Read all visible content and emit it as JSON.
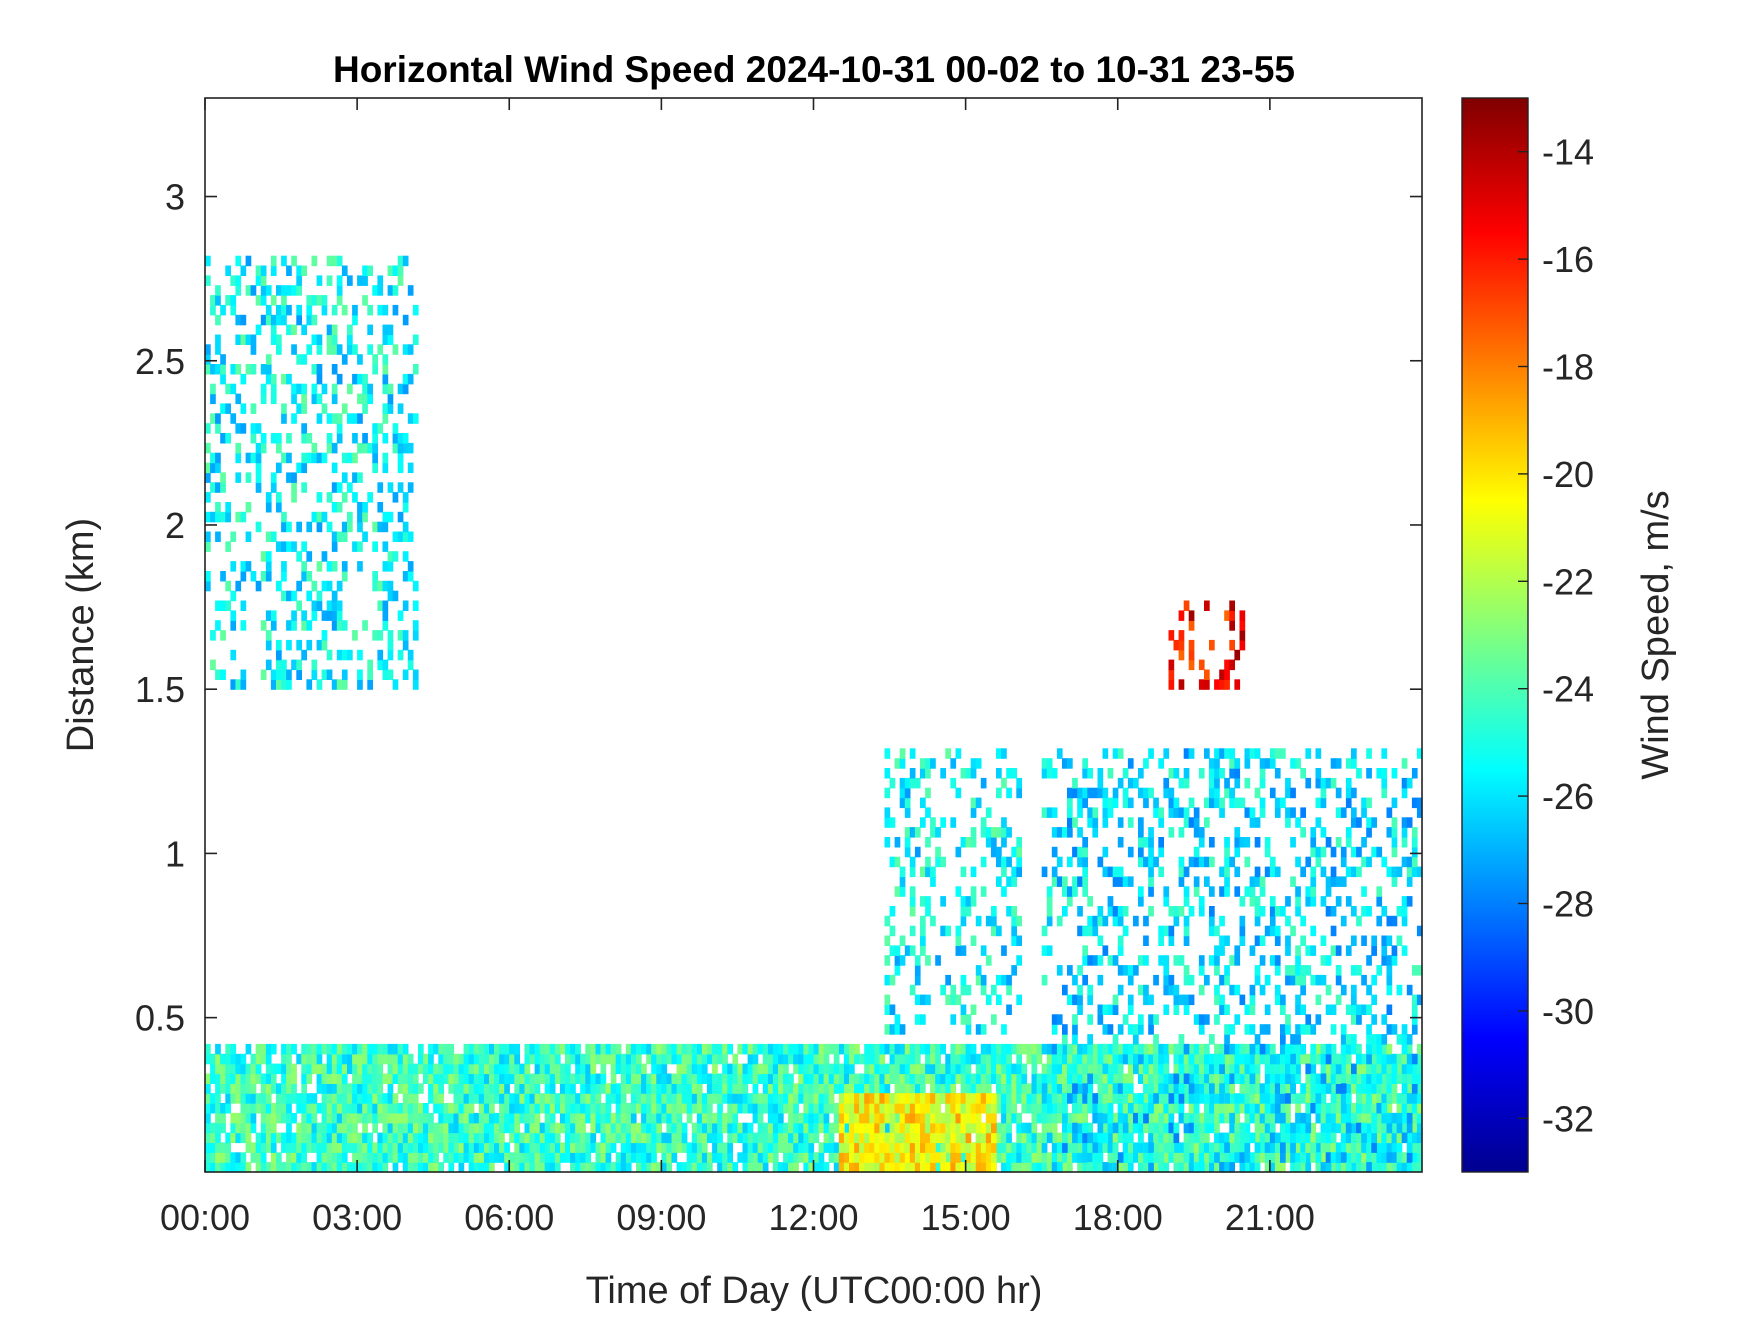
{
  "chart_data": {
    "type": "heatmap",
    "title": "Horizontal Wind Speed 2024-10-31 00-02 to 10-31 23-55",
    "xlabel": "Time of Day (UTC00:00 hr)",
    "ylabel": "Distance (km)",
    "colorbar_label": "Wind Speed, m/s",
    "xlim_hours": [
      0,
      24
    ],
    "ylim_km": [
      0.03,
      3.3
    ],
    "x_ticks": [
      {
        "hour": 0,
        "label": "00:00"
      },
      {
        "hour": 3,
        "label": "03:00"
      },
      {
        "hour": 6,
        "label": "06:00"
      },
      {
        "hour": 9,
        "label": "09:00"
      },
      {
        "hour": 12,
        "label": "12:00"
      },
      {
        "hour": 15,
        "label": "15:00"
      },
      {
        "hour": 18,
        "label": "18:00"
      },
      {
        "hour": 21,
        "label": "21:00"
      }
    ],
    "y_ticks": [
      {
        "value": 0.5,
        "label": "0.5"
      },
      {
        "value": 1,
        "label": "1"
      },
      {
        "value": 1.5,
        "label": "1.5"
      },
      {
        "value": 2,
        "label": "2"
      },
      {
        "value": 2.5,
        "label": "2.5"
      },
      {
        "value": 3,
        "label": "3"
      }
    ],
    "colorbar": {
      "min": -33,
      "max": -13,
      "colormap": "jet",
      "ticks": [
        {
          "value": -14,
          "label": "-14"
        },
        {
          "value": -16,
          "label": "-16"
        },
        {
          "value": -18,
          "label": "-18"
        },
        {
          "value": -20,
          "label": "-20"
        },
        {
          "value": -22,
          "label": "-22"
        },
        {
          "value": -24,
          "label": "-24"
        },
        {
          "value": -26,
          "label": "-26"
        },
        {
          "value": -28,
          "label": "-28"
        },
        {
          "value": -30,
          "label": "-30"
        },
        {
          "value": -32,
          "label": "-32"
        }
      ]
    },
    "grid": false,
    "regions": [
      {
        "name": "boundary-layer-low",
        "hours": [
          0,
          24
        ],
        "km": [
          0.03,
          0.4
        ],
        "speed": -24.5
      },
      {
        "name": "midday-core",
        "hours": [
          12.5,
          15.5
        ],
        "km": [
          0.03,
          0.25
        ],
        "speed": -20.5
      },
      {
        "name": "early-aloft",
        "hours": [
          0,
          4.2
        ],
        "km": [
          1.5,
          2.8
        ],
        "speed": -25.5
      },
      {
        "name": "afternoon-aloft",
        "hours": [
          13.4,
          16
        ],
        "km": [
          0.45,
          1.3
        ],
        "speed": -25.5
      },
      {
        "name": "evening-plumes",
        "hours": [
          16.5,
          24
        ],
        "km": [
          0.03,
          1.3
        ],
        "speed": -26
      },
      {
        "name": "evening-high",
        "hours": [
          19,
          20.5
        ],
        "km": [
          1.5,
          1.75
        ],
        "speed": -15.5
      }
    ]
  }
}
